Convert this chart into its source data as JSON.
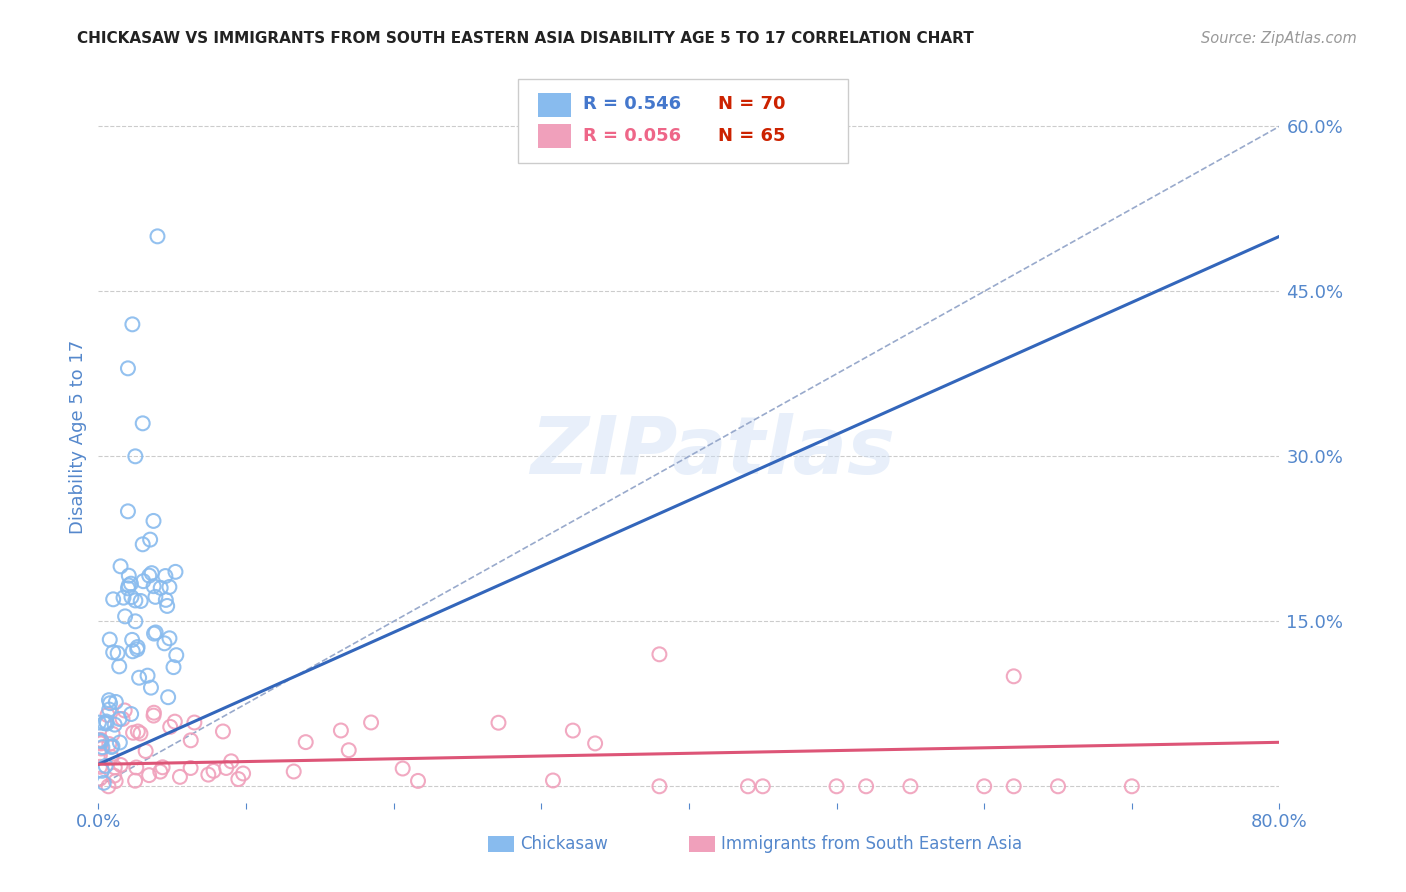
{
  "title": "CHICKASAW VS IMMIGRANTS FROM SOUTH EASTERN ASIA DISABILITY AGE 5 TO 17 CORRELATION CHART",
  "source": "Source: ZipAtlas.com",
  "ylabel": "Disability Age 5 to 17",
  "xlim": [
    0.0,
    0.8
  ],
  "ylim": [
    -0.015,
    0.65
  ],
  "ytick_vals": [
    0.0,
    0.15,
    0.3,
    0.45,
    0.6
  ],
  "ytick_labels": [
    "",
    "15.0%",
    "30.0%",
    "45.0%",
    "60.0%"
  ],
  "grid_color": "#cccccc",
  "background_color": "#ffffff",
  "watermark_text": "ZIPatlas",
  "chickasaw_color": "#88bbee",
  "immigrant_color": "#f0a0bb",
  "chickasaw_line_color": "#3366bb",
  "immigrant_line_color": "#dd5577",
  "diagonal_line_color": "#99aacc",
  "R_chickasaw": 0.546,
  "N_chickasaw": 70,
  "R_immigrant": 0.056,
  "N_immigrant": 65,
  "title_color": "#222222",
  "tick_color": "#5588cc",
  "legend_color_blue": "#4477cc",
  "legend_color_pink": "#ee6688",
  "legend_N_color": "#cc2200"
}
